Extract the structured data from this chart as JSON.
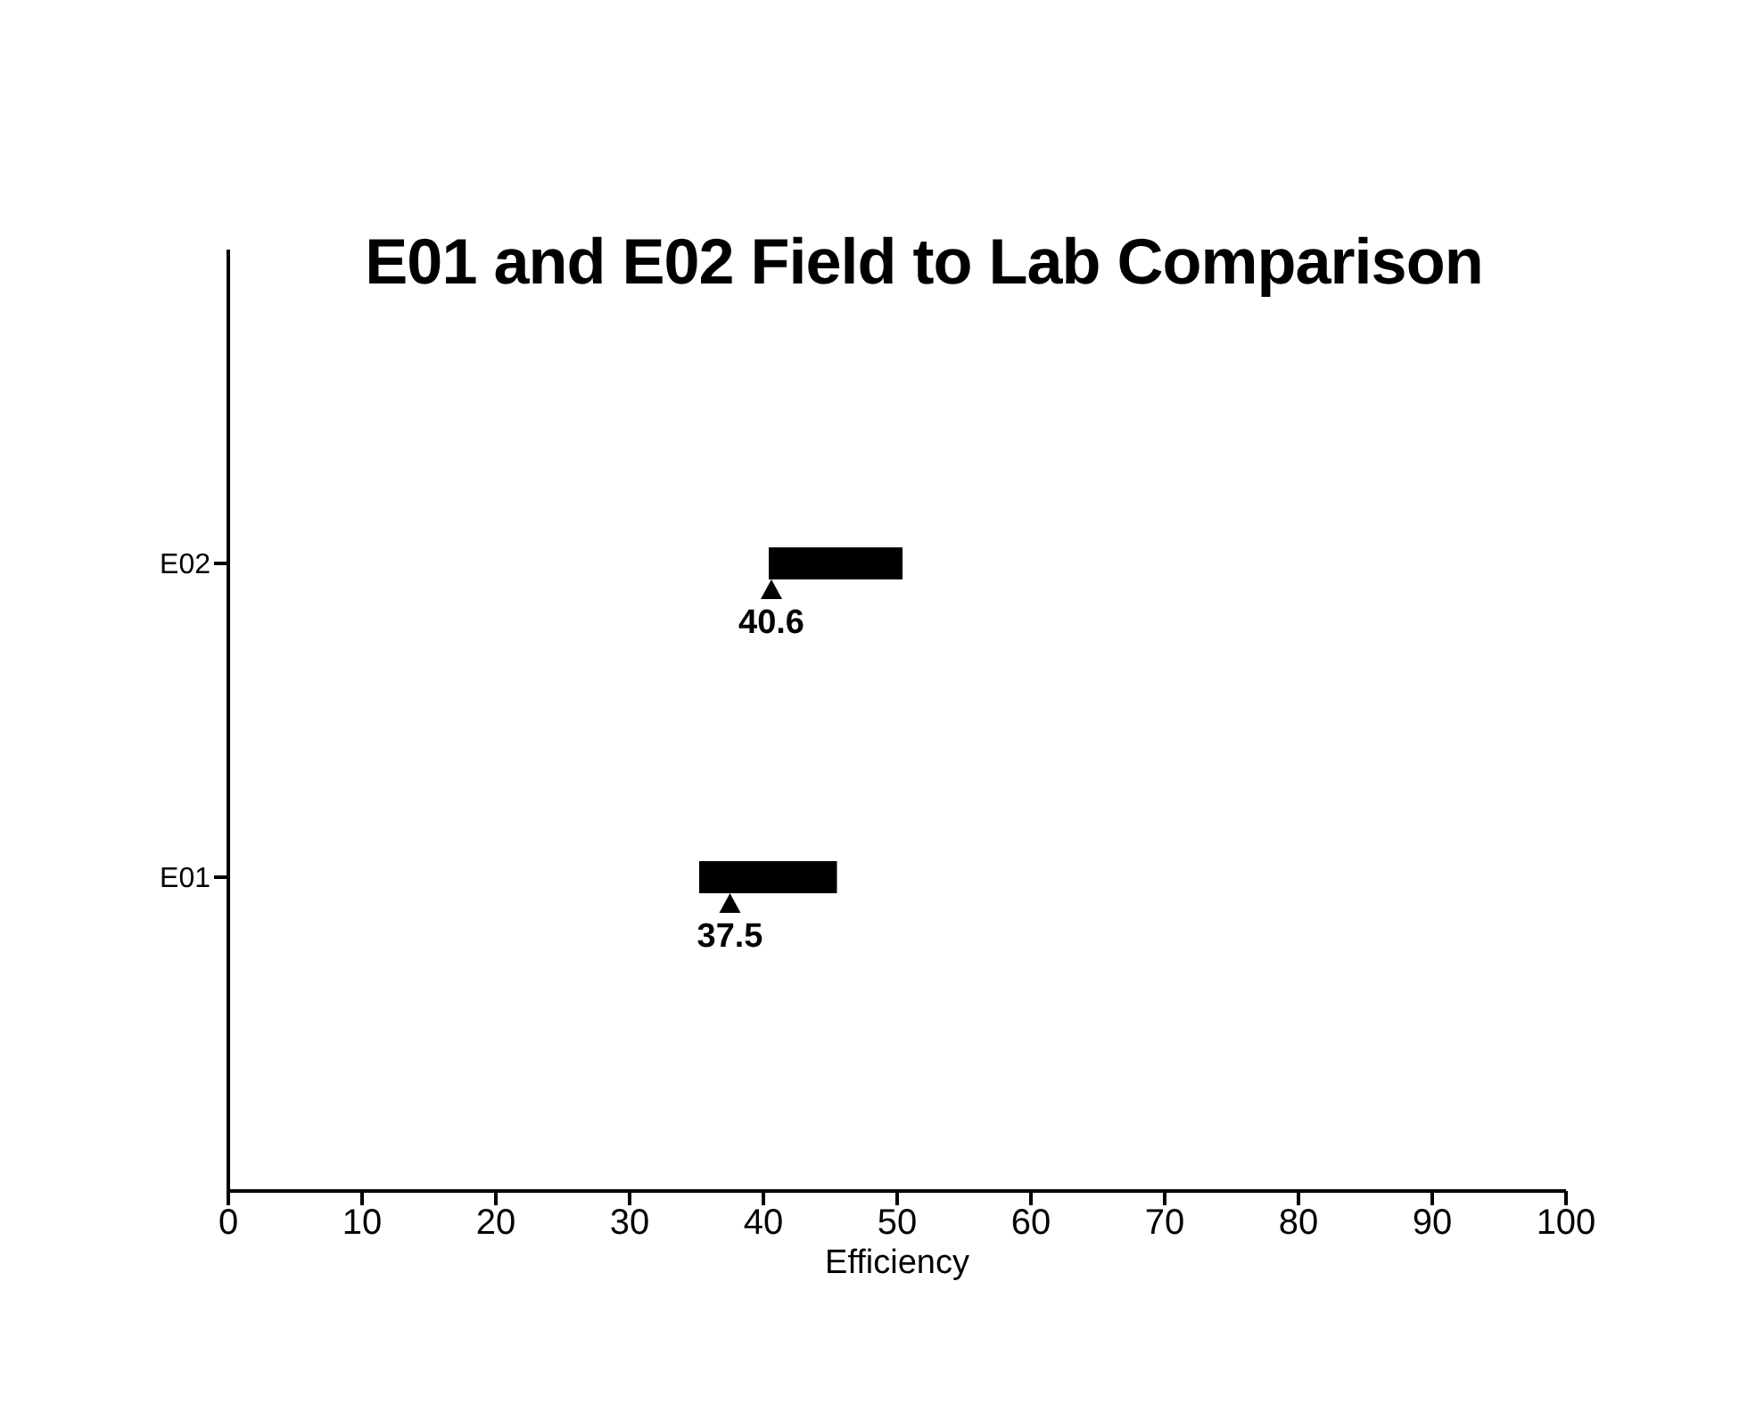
{
  "chart_data": {
    "type": "bar",
    "orientation": "horizontal",
    "title": "E01 and E02 Field to Lab Comparison",
    "xlabel": "Efficiency",
    "categories": [
      "E02",
      "E01"
    ],
    "series": [
      {
        "type": "bar",
        "color": "#000000",
        "base": [
          40.4,
          35.2
        ],
        "values": [
          10,
          10.3
        ]
      },
      {
        "type": "scatter",
        "color": "#000000",
        "marker": "triangle",
        "values": [
          40.6,
          37.5
        ],
        "data_labels": true
      }
    ],
    "xlim": [
      0,
      100
    ],
    "xticks": [
      0,
      10,
      20,
      30,
      40,
      50,
      60,
      70,
      80,
      90,
      100
    ]
  }
}
